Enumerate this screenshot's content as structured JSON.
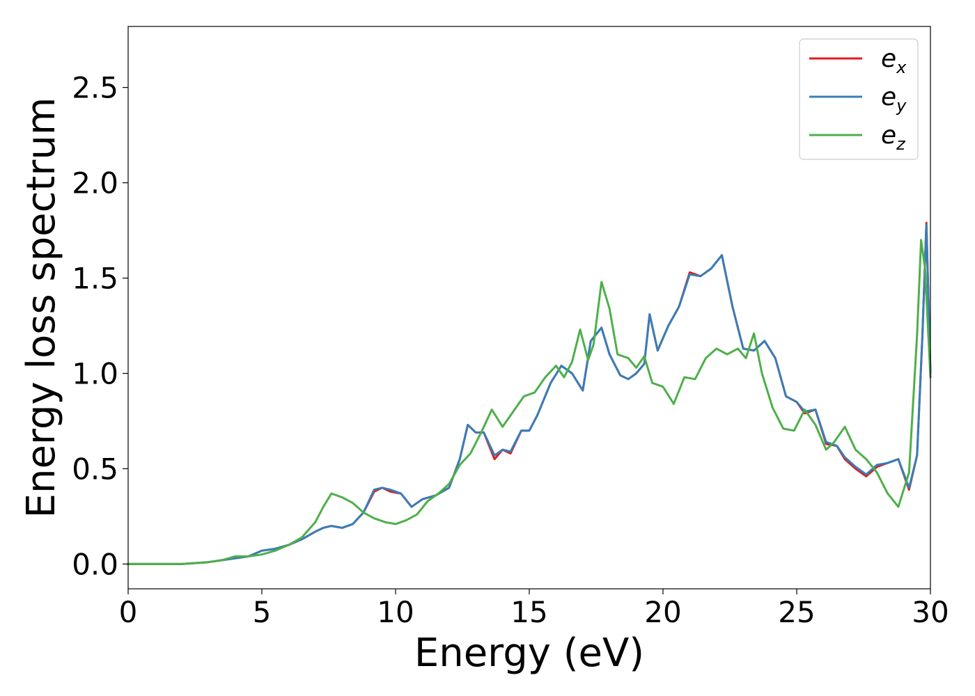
{
  "chart_data": {
    "type": "line",
    "title": "",
    "xlabel": "Energy (eV)",
    "ylabel": "Energy loss spectrum",
    "xlim": [
      0,
      30
    ],
    "ylim": [
      -0.13,
      2.82
    ],
    "xticks": [
      0,
      5,
      10,
      15,
      20,
      25,
      30
    ],
    "xtick_labels": [
      "0",
      "5",
      "10",
      "15",
      "20",
      "25",
      "30"
    ],
    "yticks": [
      0.0,
      0.5,
      1.0,
      1.5,
      2.0,
      2.5
    ],
    "ytick_labels": [
      "0.0",
      "0.5",
      "1.0",
      "1.5",
      "2.0",
      "2.5"
    ],
    "grid": false,
    "legend_position": "top-right",
    "series": [
      {
        "name": "e_x",
        "legend_base": "e",
        "legend_sub": "x",
        "color": "#e41a1c",
        "x": [
          0,
          1,
          2,
          3,
          3.5,
          4,
          4.5,
          5,
          5.5,
          6,
          6.5,
          7,
          7.3,
          7.6,
          8,
          8.4,
          8.8,
          9.2,
          9.5,
          9.8,
          10.2,
          10.6,
          11,
          11.5,
          12,
          12.4,
          12.7,
          13,
          13.3,
          13.7,
          14,
          14.3,
          14.7,
          15,
          15.3,
          15.8,
          16.2,
          16.6,
          17,
          17.3,
          17.7,
          18,
          18.4,
          18.7,
          19,
          19.3,
          19.5,
          19.8,
          20.2,
          20.6,
          21,
          21.4,
          21.8,
          22.2,
          22.6,
          23,
          23.4,
          23.8,
          24.2,
          24.6,
          25,
          25.3,
          25.7,
          26.1,
          26.5,
          26.8,
          27.2,
          27.6,
          28,
          28.4,
          28.8,
          29.2,
          29.5,
          29.7,
          29.85,
          30
        ],
        "y": [
          0,
          0,
          0,
          0.01,
          0.02,
          0.03,
          0.04,
          0.07,
          0.08,
          0.1,
          0.13,
          0.17,
          0.19,
          0.2,
          0.19,
          0.21,
          0.27,
          0.38,
          0.4,
          0.38,
          0.37,
          0.3,
          0.34,
          0.36,
          0.4,
          0.55,
          0.73,
          0.69,
          0.69,
          0.55,
          0.6,
          0.58,
          0.7,
          0.7,
          0.78,
          0.95,
          1.04,
          1.0,
          0.91,
          1.17,
          1.24,
          1.1,
          0.99,
          0.97,
          1.0,
          1.05,
          1.31,
          1.12,
          1.25,
          1.35,
          1.53,
          1.51,
          1.55,
          1.62,
          1.35,
          1.13,
          1.12,
          1.17,
          1.08,
          0.88,
          0.85,
          0.79,
          0.81,
          0.63,
          0.62,
          0.55,
          0.5,
          0.46,
          0.51,
          0.53,
          0.55,
          0.39,
          0.57,
          1.2,
          1.79,
          1.0
        ]
      },
      {
        "name": "e_y",
        "legend_base": "e",
        "legend_sub": "y",
        "color": "#377eb8",
        "x": [
          0,
          1,
          2,
          3,
          3.5,
          4,
          4.5,
          5,
          5.5,
          6,
          6.5,
          7,
          7.3,
          7.6,
          8,
          8.4,
          8.8,
          9.2,
          9.5,
          9.8,
          10.2,
          10.6,
          11,
          11.5,
          12,
          12.4,
          12.7,
          13,
          13.3,
          13.7,
          14,
          14.3,
          14.7,
          15,
          15.3,
          15.8,
          16.2,
          16.6,
          17,
          17.3,
          17.7,
          18,
          18.4,
          18.7,
          19,
          19.3,
          19.5,
          19.8,
          20.2,
          20.6,
          21,
          21.4,
          21.8,
          22.2,
          22.6,
          23,
          23.4,
          23.8,
          24.2,
          24.6,
          25,
          25.3,
          25.7,
          26.1,
          26.5,
          26.8,
          27.2,
          27.6,
          28,
          28.4,
          28.8,
          29.2,
          29.5,
          29.7,
          29.85,
          30
        ],
        "y": [
          0,
          0,
          0,
          0.01,
          0.02,
          0.03,
          0.04,
          0.07,
          0.08,
          0.1,
          0.13,
          0.17,
          0.19,
          0.2,
          0.19,
          0.21,
          0.27,
          0.39,
          0.4,
          0.39,
          0.37,
          0.3,
          0.34,
          0.36,
          0.4,
          0.55,
          0.73,
          0.69,
          0.69,
          0.57,
          0.6,
          0.59,
          0.7,
          0.7,
          0.78,
          0.95,
          1.04,
          1.0,
          0.91,
          1.17,
          1.24,
          1.1,
          0.99,
          0.97,
          1.0,
          1.05,
          1.31,
          1.12,
          1.25,
          1.35,
          1.52,
          1.51,
          1.55,
          1.62,
          1.35,
          1.13,
          1.12,
          1.17,
          1.08,
          0.88,
          0.85,
          0.8,
          0.81,
          0.64,
          0.62,
          0.56,
          0.51,
          0.47,
          0.52,
          0.53,
          0.55,
          0.4,
          0.57,
          1.2,
          1.78,
          1.0
        ]
      },
      {
        "name": "e_z",
        "legend_base": "e",
        "legend_sub": "z",
        "color": "#4daf4a",
        "x": [
          0,
          1,
          2,
          3,
          3.5,
          4,
          4.5,
          5,
          5.5,
          6,
          6.5,
          7,
          7.3,
          7.6,
          8,
          8.4,
          8.8,
          9.2,
          9.6,
          10,
          10.4,
          10.8,
          11.2,
          11.6,
          12,
          12.4,
          12.8,
          13.2,
          13.6,
          14,
          14.4,
          14.8,
          15.2,
          15.6,
          16,
          16.3,
          16.6,
          16.9,
          17.2,
          17.4,
          17.7,
          18,
          18.3,
          18.7,
          19,
          19.3,
          19.6,
          20,
          20.4,
          20.8,
          21.2,
          21.6,
          22,
          22.4,
          22.8,
          23.1,
          23.4,
          23.7,
          24.1,
          24.5,
          24.9,
          25.3,
          25.7,
          26.1,
          26.4,
          26.8,
          27.2,
          27.6,
          28,
          28.4,
          28.8,
          29.2,
          29.5,
          29.65,
          29.8,
          30
        ],
        "y": [
          0,
          0,
          0,
          0.01,
          0.02,
          0.04,
          0.04,
          0.05,
          0.07,
          0.1,
          0.14,
          0.22,
          0.3,
          0.37,
          0.35,
          0.32,
          0.27,
          0.24,
          0.22,
          0.21,
          0.23,
          0.26,
          0.33,
          0.37,
          0.42,
          0.52,
          0.58,
          0.69,
          0.81,
          0.72,
          0.8,
          0.88,
          0.9,
          0.98,
          1.04,
          0.98,
          1.06,
          1.23,
          1.07,
          1.15,
          1.48,
          1.34,
          1.1,
          1.08,
          1.03,
          1.09,
          0.95,
          0.93,
          0.84,
          0.98,
          0.97,
          1.08,
          1.13,
          1.1,
          1.13,
          1.08,
          1.21,
          1.0,
          0.82,
          0.71,
          0.7,
          0.81,
          0.73,
          0.6,
          0.64,
          0.72,
          0.6,
          0.55,
          0.48,
          0.37,
          0.3,
          0.48,
          1.2,
          1.7,
          1.55,
          0.98
        ]
      }
    ]
  }
}
